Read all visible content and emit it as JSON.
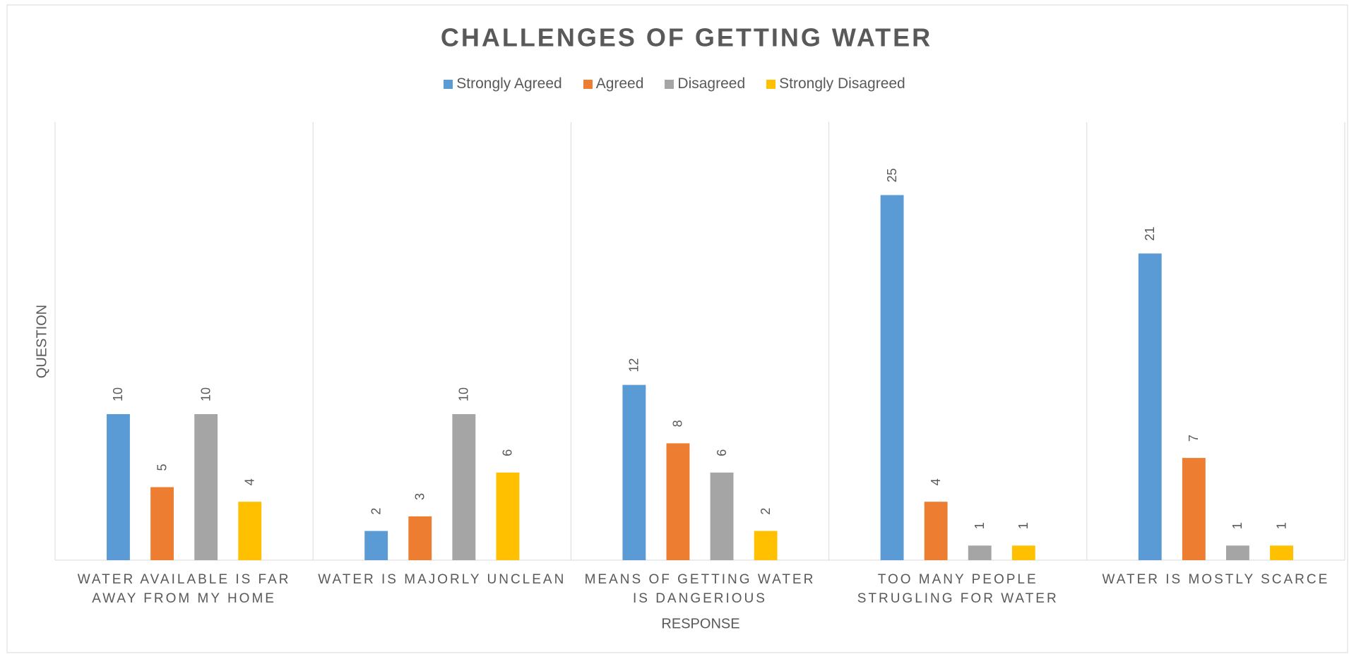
{
  "chart_data": {
    "type": "bar",
    "title": "CHALLENGES OF GETTING WATER",
    "x_label": "RESPONSE",
    "y_label": "QUESTION",
    "categories": [
      "WATER AVAILABLE IS FAR AWAY FROM MY HOME",
      "WATER IS MAJORLY UNCLEAN",
      "MEANS OF GETTING WATER IS DANGERIOUS",
      "TOO MANY PEOPLE STRUGLING FOR WATER",
      "WATER IS MOSTLY SCARCE"
    ],
    "series": [
      {
        "name": "Strongly Agreed",
        "color": "#5b9bd5",
        "values": [
          10,
          2,
          12,
          25,
          21
        ]
      },
      {
        "name": "Agreed",
        "color": "#ed7d31",
        "values": [
          5,
          3,
          8,
          4,
          7
        ]
      },
      {
        "name": "Disagreed",
        "color": "#a5a5a5",
        "values": [
          10,
          10,
          6,
          1,
          1
        ]
      },
      {
        "name": "Strongly Disagreed",
        "color": "#ffc000",
        "values": [
          4,
          6,
          2,
          1,
          1
        ]
      }
    ],
    "ylim": [
      0,
      30
    ],
    "legend": "top"
  }
}
